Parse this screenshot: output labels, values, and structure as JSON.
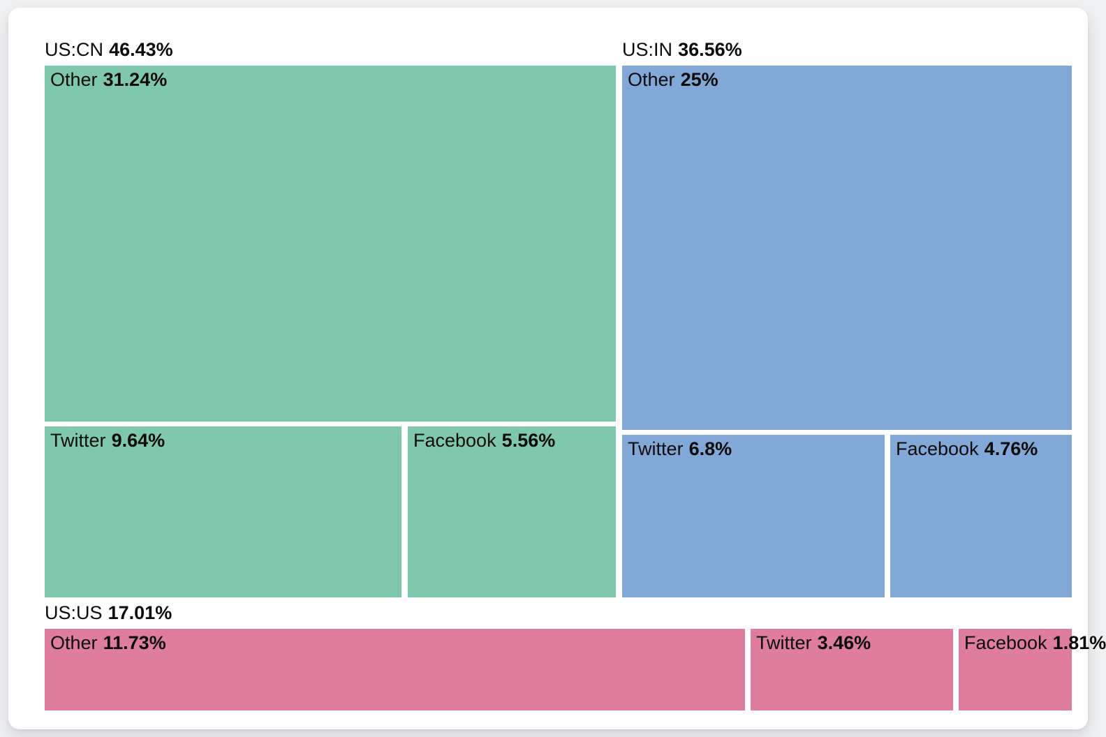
{
  "chart_data": {
    "type": "treemap",
    "unit": "%",
    "legend": "none",
    "layout_hint": "three country groups tiled left-to-right then bottom; children squarified within each group",
    "groups": [
      {
        "label": "US:CN",
        "value": 46.43,
        "display": "46.43%",
        "color": "#80c8ab",
        "children": [
          {
            "label": "Other",
            "value": 31.24,
            "display": "31.24%"
          },
          {
            "label": "Twitter",
            "value": 9.64,
            "display": "9.64%"
          },
          {
            "label": "Facebook",
            "value": 5.56,
            "display": "5.56%"
          }
        ]
      },
      {
        "label": "US:IN",
        "value": 36.56,
        "display": "36.56%",
        "color": "#81a8d7",
        "children": [
          {
            "label": "Other",
            "value": 25,
            "display": "25%"
          },
          {
            "label": "Twitter",
            "value": 6.8,
            "display": "6.8%"
          },
          {
            "label": "Facebook",
            "value": 4.76,
            "display": "4.76%"
          }
        ]
      },
      {
        "label": "US:US",
        "value": 17.01,
        "display": "17.01%",
        "color": "#df7e9c",
        "children": [
          {
            "label": "Other",
            "value": 11.73,
            "display": "11.73%"
          },
          {
            "label": "Twitter",
            "value": 3.46,
            "display": "3.46%"
          },
          {
            "label": "Facebook",
            "value": 1.81,
            "display": "1.81%"
          }
        ]
      }
    ],
    "colors": {
      "text": "#0b0b0b",
      "card_background": "#ffffff",
      "page_background": "#eef0f2"
    }
  }
}
